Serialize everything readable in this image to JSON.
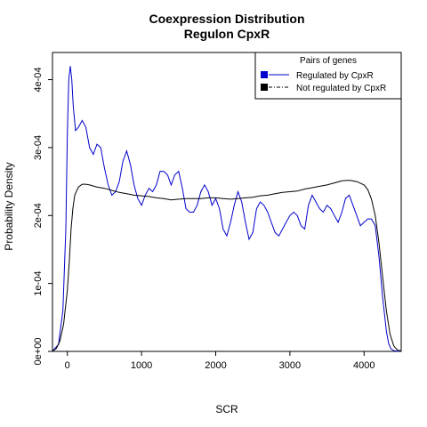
{
  "chart_data": {
    "type": "line",
    "title": "Coexpression Distribution",
    "subtitle": "Regulon CpxR",
    "xlabel": "SCR",
    "ylabel": "Probability Density",
    "xlim": [
      -200,
      4500
    ],
    "ylim": [
      0,
      0.00044
    ],
    "x_ticks": [
      0,
      1000,
      2000,
      3000,
      4000
    ],
    "x_tick_labels": [
      "0",
      "1000",
      "2000",
      "3000",
      "4000"
    ],
    "y_ticks": [
      0,
      0.0001,
      0.0002,
      0.0003,
      0.0004
    ],
    "y_tick_labels": [
      "0e+00",
      "1e-04",
      "2e-04",
      "3e-04",
      "4e-04"
    ],
    "legend": {
      "title": "Pairs of genes",
      "placement": "top-right",
      "entries": [
        "Regulated by  CpxR",
        "Not regulated by  CpxR"
      ]
    },
    "series": [
      {
        "name": "Regulated by  CpxR",
        "color": "#0000cc",
        "dash": "solid",
        "x": [
          -200,
          -120,
          -60,
          -20,
          0,
          20,
          40,
          60,
          80,
          110,
          150,
          200,
          250,
          300,
          350,
          400,
          450,
          500,
          550,
          600,
          650,
          700,
          750,
          800,
          850,
          900,
          950,
          1000,
          1050,
          1100,
          1150,
          1200,
          1250,
          1300,
          1350,
          1400,
          1450,
          1500,
          1550,
          1600,
          1650,
          1700,
          1750,
          1800,
          1850,
          1900,
          1950,
          2000,
          2050,
          2100,
          2150,
          2200,
          2250,
          2300,
          2350,
          2400,
          2450,
          2500,
          2550,
          2600,
          2650,
          2700,
          2750,
          2800,
          2850,
          2900,
          2950,
          3000,
          3050,
          3100,
          3150,
          3200,
          3250,
          3300,
          3350,
          3400,
          3450,
          3500,
          3550,
          3600,
          3650,
          3700,
          3750,
          3800,
          3850,
          3900,
          3950,
          4000,
          4050,
          4100,
          4150,
          4200,
          4250,
          4300,
          4330,
          4360,
          4400,
          4450,
          4500
        ],
        "y": [
          5e-07,
          1e-05,
          6e-05,
          0.00018,
          0.00032,
          0.0004,
          0.00042,
          0.0004,
          0.00036,
          0.000325,
          0.00033,
          0.00034,
          0.00033,
          0.0003,
          0.00029,
          0.000305,
          0.0003,
          0.00027,
          0.000245,
          0.00023,
          0.000235,
          0.00025,
          0.00028,
          0.000295,
          0.000275,
          0.000245,
          0.000225,
          0.000215,
          0.00023,
          0.00024,
          0.000235,
          0.000245,
          0.000265,
          0.000265,
          0.00026,
          0.000245,
          0.00026,
          0.000265,
          0.00024,
          0.00021,
          0.000205,
          0.000205,
          0.000215,
          0.000235,
          0.000245,
          0.000235,
          0.000215,
          0.000225,
          0.00021,
          0.00018,
          0.00017,
          0.00019,
          0.000215,
          0.000235,
          0.00022,
          0.00019,
          0.000165,
          0.000175,
          0.00021,
          0.00022,
          0.000215,
          0.000205,
          0.00019,
          0.000175,
          0.00017,
          0.00018,
          0.00019,
          0.0002,
          0.000205,
          0.0002,
          0.000185,
          0.00018,
          0.000215,
          0.00023,
          0.00022,
          0.00021,
          0.000205,
          0.000215,
          0.00021,
          0.0002,
          0.00019,
          0.000205,
          0.000225,
          0.00023,
          0.000215,
          0.0002,
          0.000185,
          0.00019,
          0.000195,
          0.000195,
          0.000185,
          0.00014,
          8e-05,
          3e-05,
          1.2e-05,
          4e-06,
          1e-06,
          3e-07,
          1e-07
        ]
      },
      {
        "name": "Not regulated by  CpxR",
        "color": "#000000",
        "dash": "solid",
        "x": [
          -200,
          -150,
          -100,
          -50,
          0,
          25,
          50,
          75,
          100,
          150,
          200,
          250,
          300,
          400,
          500,
          600,
          700,
          800,
          900,
          1000,
          1100,
          1200,
          1300,
          1400,
          1500,
          1600,
          1700,
          1800,
          1900,
          2000,
          2100,
          2200,
          2300,
          2400,
          2500,
          2600,
          2700,
          2800,
          2900,
          3000,
          3100,
          3200,
          3300,
          3400,
          3500,
          3600,
          3700,
          3800,
          3900,
          4000,
          4050,
          4100,
          4150,
          4200,
          4250,
          4300,
          4350,
          4400,
          4450,
          4500
        ],
        "y": [
          5e-07,
          4e-06,
          1.5e-05,
          4e-05,
          9e-05,
          0.00013,
          0.00018,
          0.00021,
          0.00023,
          0.000242,
          0.000246,
          0.000246,
          0.000245,
          0.000242,
          0.00024,
          0.000237,
          0.000234,
          0.000232,
          0.00023,
          0.000229,
          0.000228,
          0.000226,
          0.000225,
          0.000223,
          0.000224,
          0.000225,
          0.000225,
          0.000225,
          0.000226,
          0.000226,
          0.000225,
          0.000224,
          0.000225,
          0.000226,
          0.000227,
          0.000229,
          0.00023,
          0.000232,
          0.000234,
          0.000235,
          0.000236,
          0.000239,
          0.000241,
          0.000243,
          0.000245,
          0.000248,
          0.000251,
          0.000252,
          0.00025,
          0.000245,
          0.000238,
          0.000224,
          0.0002,
          0.00016,
          0.00011,
          6e-05,
          2.5e-05,
          8e-06,
          2e-06,
          5e-07
        ]
      }
    ]
  }
}
